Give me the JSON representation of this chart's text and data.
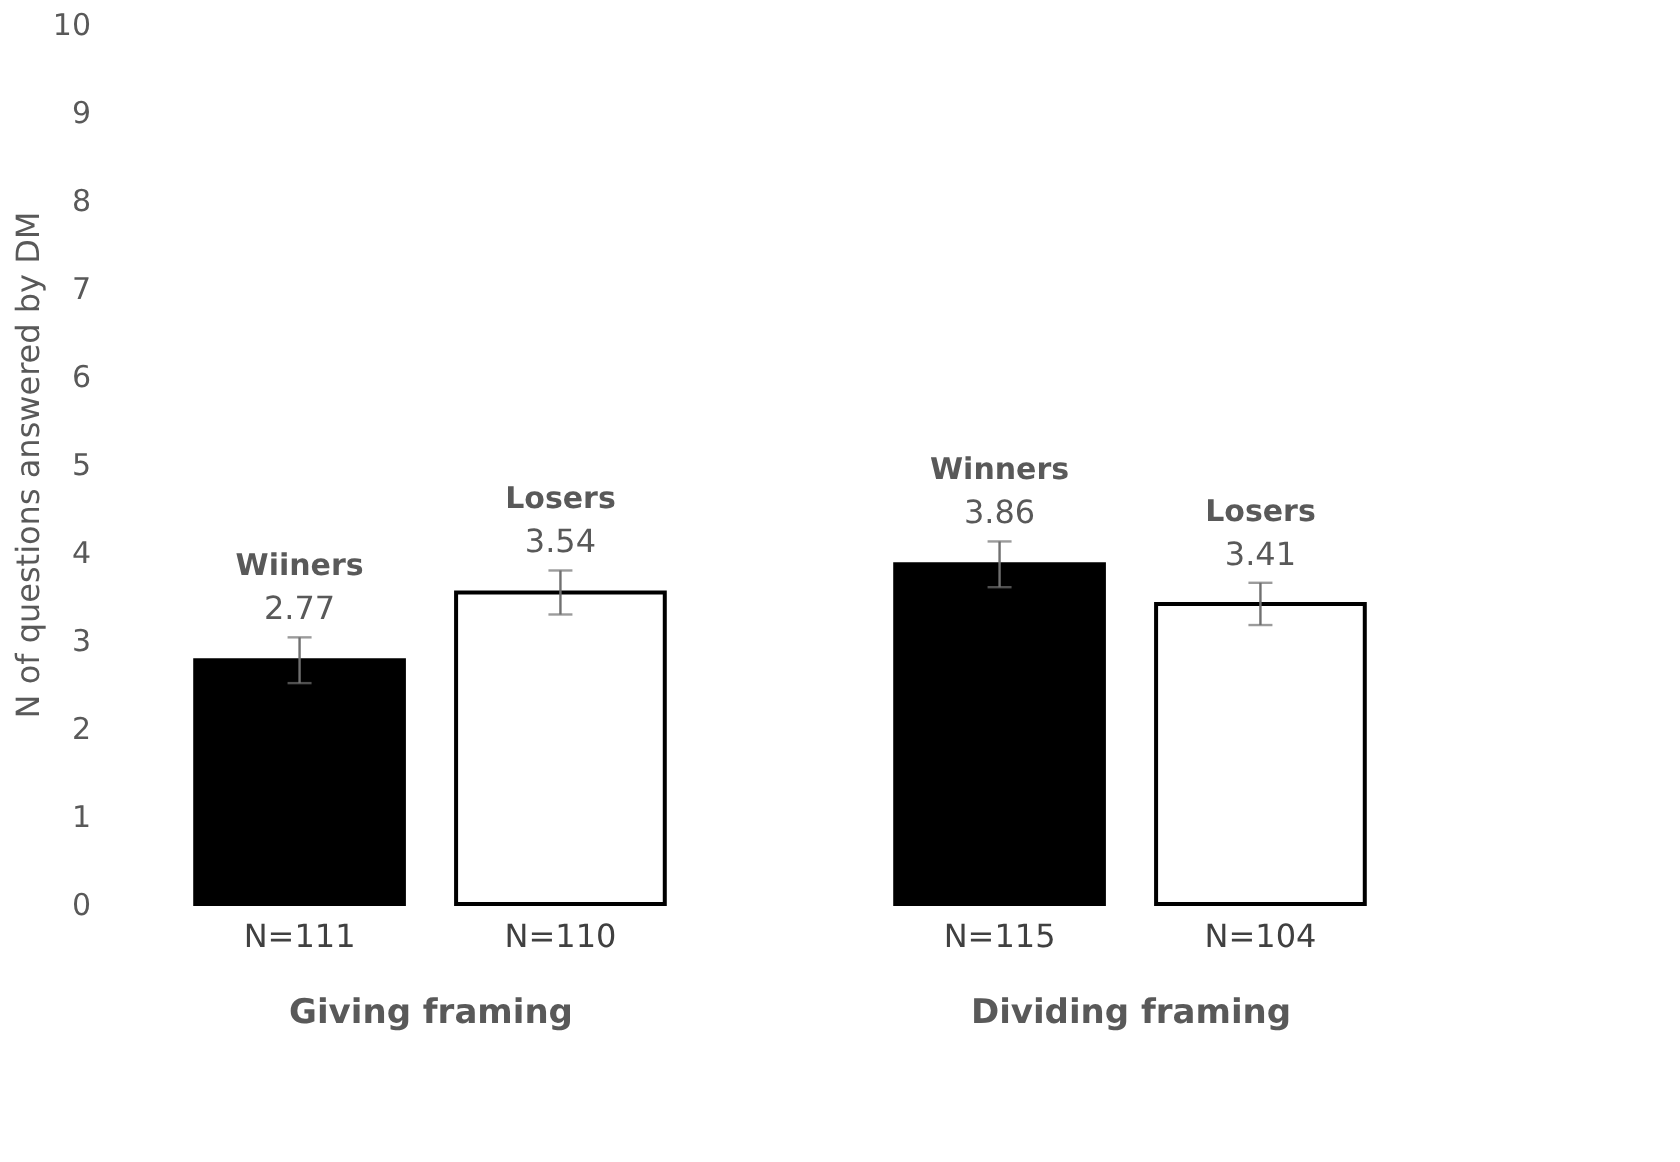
{
  "chart_data": [
    {
      "type": "bar",
      "xlabel": "Giving framing",
      "ylabel": "N of questions answered by DM",
      "categories": [
        "N=111",
        "N=110"
      ],
      "ylim": [
        0,
        10
      ],
      "yticks": [
        0,
        1,
        2,
        3,
        4,
        5,
        6,
        7,
        8,
        9,
        10
      ],
      "data_labels": true,
      "series": [
        {
          "name": "Wiiners",
          "color": "#000000",
          "values": [
            2.77,
            null
          ],
          "errors": [
            0.26,
            null
          ]
        },
        {
          "name": "Losers",
          "color": "#ffffff",
          "values": [
            null,
            3.54
          ],
          "errors": [
            null,
            0.25
          ]
        }
      ]
    },
    {
      "type": "bar",
      "xlabel": "Dividing framing",
      "categories": [
        "N=115",
        "N=104"
      ],
      "ylim": [
        0,
        10
      ],
      "yticks": [
        0,
        1,
        2,
        3,
        4,
        5,
        6,
        7,
        8,
        9,
        10
      ],
      "data_labels": true,
      "tick_labels": "x",
      "series": [
        {
          "name": "Winners",
          "color": "#000000",
          "values": [
            3.86,
            null
          ],
          "errors": [
            0.26,
            null
          ]
        },
        {
          "name": "Losers",
          "color": "#ffffff",
          "values": [
            null,
            3.41
          ],
          "errors": [
            null,
            0.24
          ]
        }
      ]
    }
  ]
}
